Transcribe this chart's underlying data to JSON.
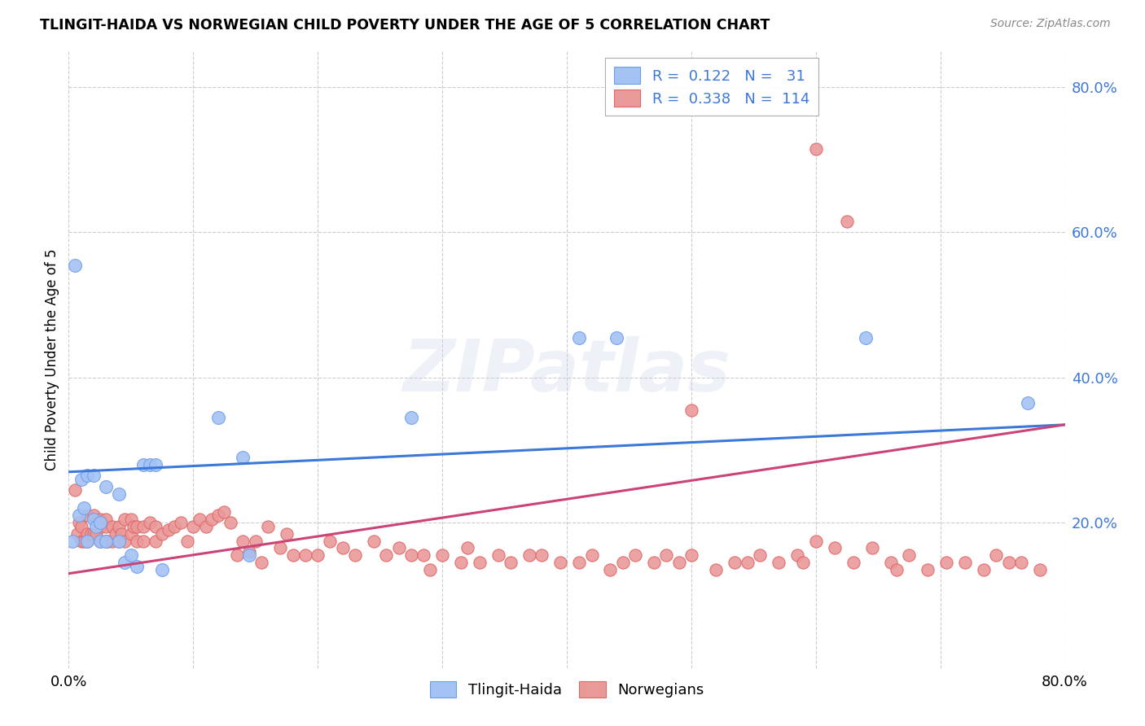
{
  "title": "TLINGIT-HAIDA VS NORWEGIAN CHILD POVERTY UNDER THE AGE OF 5 CORRELATION CHART",
  "source": "Source: ZipAtlas.com",
  "ylabel": "Child Poverty Under the Age of 5",
  "xmin": 0.0,
  "xmax": 0.8,
  "ymin": 0.0,
  "ymax": 0.85,
  "ytick_positions": [
    0.2,
    0.4,
    0.6,
    0.8
  ],
  "ytick_labels": [
    "20.0%",
    "40.0%",
    "60.0%",
    "80.0%"
  ],
  "xtick_positions": [
    0.0,
    0.1,
    0.2,
    0.3,
    0.4,
    0.5,
    0.6,
    0.7,
    0.8
  ],
  "watermark": "ZIPatlas",
  "tlingit_color": "#a4c2f4",
  "norwegian_color": "#ea9999",
  "tlingit_edge_color": "#6d9eeb",
  "norwegian_edge_color": "#e06666",
  "tlingit_line_color": "#3c78d8",
  "norwegian_line_color": "#cc4477",
  "background_color": "#ffffff",
  "grid_color": "#cccccc",
  "label_color": "#3c78d8",
  "tlingit_line_start_y": 0.27,
  "tlingit_line_end_y": 0.335,
  "norwegian_line_start_y": 0.13,
  "norwegian_line_end_y": 0.335,
  "tlingit_x": [
    0.003,
    0.005,
    0.008,
    0.01,
    0.012,
    0.015,
    0.015,
    0.02,
    0.02,
    0.022,
    0.025,
    0.025,
    0.03,
    0.03,
    0.04,
    0.04,
    0.045,
    0.05,
    0.055,
    0.06,
    0.065,
    0.07,
    0.075,
    0.12,
    0.14,
    0.145,
    0.275,
    0.41,
    0.44,
    0.64,
    0.77
  ],
  "tlingit_y": [
    0.175,
    0.555,
    0.21,
    0.26,
    0.22,
    0.265,
    0.175,
    0.265,
    0.205,
    0.195,
    0.2,
    0.175,
    0.25,
    0.175,
    0.24,
    0.175,
    0.145,
    0.155,
    0.14,
    0.28,
    0.28,
    0.28,
    0.135,
    0.345,
    0.29,
    0.155,
    0.345,
    0.455,
    0.455,
    0.455,
    0.365
  ],
  "norwegian_x": [
    0.005,
    0.007,
    0.008,
    0.01,
    0.01,
    0.012,
    0.015,
    0.015,
    0.015,
    0.018,
    0.02,
    0.02,
    0.022,
    0.025,
    0.025,
    0.025,
    0.03,
    0.03,
    0.03,
    0.03,
    0.032,
    0.035,
    0.035,
    0.038,
    0.04,
    0.04,
    0.042,
    0.045,
    0.045,
    0.05,
    0.05,
    0.052,
    0.055,
    0.055,
    0.06,
    0.06,
    0.065,
    0.07,
    0.07,
    0.075,
    0.08,
    0.085,
    0.09,
    0.095,
    0.1,
    0.105,
    0.11,
    0.115,
    0.12,
    0.125,
    0.13,
    0.135,
    0.14,
    0.145,
    0.15,
    0.155,
    0.16,
    0.17,
    0.175,
    0.18,
    0.19,
    0.2,
    0.21,
    0.22,
    0.23,
    0.245,
    0.255,
    0.265,
    0.275,
    0.285,
    0.29,
    0.3,
    0.315,
    0.32,
    0.33,
    0.345,
    0.355,
    0.37,
    0.38,
    0.395,
    0.41,
    0.42,
    0.435,
    0.445,
    0.455,
    0.47,
    0.48,
    0.49,
    0.5,
    0.52,
    0.535,
    0.545,
    0.555,
    0.57,
    0.585,
    0.59,
    0.6,
    0.615,
    0.63,
    0.645,
    0.66,
    0.675,
    0.69,
    0.705,
    0.72,
    0.735,
    0.745,
    0.755,
    0.765,
    0.78,
    0.5,
    0.6,
    0.625,
    0.665
  ],
  "norwegian_y": [
    0.245,
    0.185,
    0.2,
    0.175,
    0.195,
    0.175,
    0.185,
    0.21,
    0.175,
    0.185,
    0.185,
    0.21,
    0.185,
    0.195,
    0.175,
    0.205,
    0.175,
    0.195,
    0.175,
    0.205,
    0.175,
    0.195,
    0.175,
    0.185,
    0.175,
    0.195,
    0.185,
    0.175,
    0.205,
    0.185,
    0.205,
    0.195,
    0.175,
    0.195,
    0.175,
    0.195,
    0.2,
    0.195,
    0.175,
    0.185,
    0.19,
    0.195,
    0.2,
    0.175,
    0.195,
    0.205,
    0.195,
    0.205,
    0.21,
    0.215,
    0.2,
    0.155,
    0.175,
    0.16,
    0.175,
    0.145,
    0.195,
    0.165,
    0.185,
    0.155,
    0.155,
    0.155,
    0.175,
    0.165,
    0.155,
    0.175,
    0.155,
    0.165,
    0.155,
    0.155,
    0.135,
    0.155,
    0.145,
    0.165,
    0.145,
    0.155,
    0.145,
    0.155,
    0.155,
    0.145,
    0.145,
    0.155,
    0.135,
    0.145,
    0.155,
    0.145,
    0.155,
    0.145,
    0.155,
    0.135,
    0.145,
    0.145,
    0.155,
    0.145,
    0.155,
    0.145,
    0.175,
    0.165,
    0.145,
    0.165,
    0.145,
    0.155,
    0.135,
    0.145,
    0.145,
    0.135,
    0.155,
    0.145,
    0.145,
    0.135,
    0.355,
    0.715,
    0.615,
    0.135
  ]
}
